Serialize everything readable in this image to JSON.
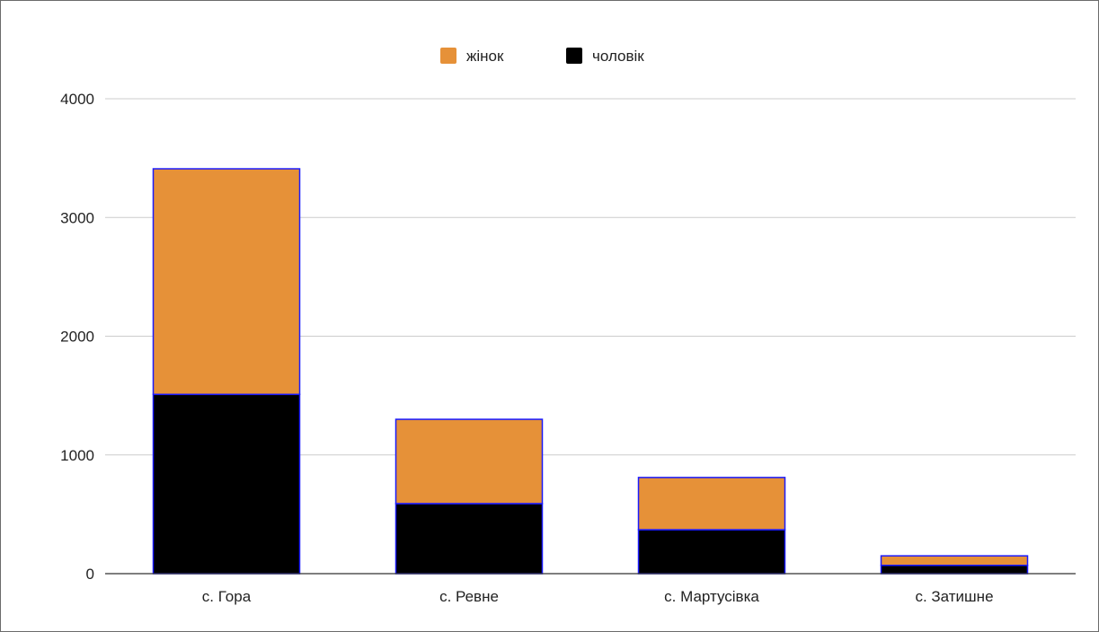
{
  "chart_data": {
    "type": "bar",
    "stacked": true,
    "title": "",
    "xlabel": "",
    "ylabel": "",
    "categories": [
      "с. Гора",
      "с. Ревне",
      "с. Мартусівка",
      "с. Затишне"
    ],
    "series": [
      {
        "name": "чоловік",
        "color": "#000000",
        "values": [
          1510,
          590,
          370,
          70
        ]
      },
      {
        "name": "жінок",
        "color": "#e69138",
        "values": [
          1900,
          710,
          440,
          80
        ]
      }
    ],
    "legend_order": [
      "жінок",
      "чоловік"
    ],
    "bar_outline_color": "#1a1aff",
    "yticks": [
      "0",
      "1000",
      "2000",
      "3000",
      "4000"
    ],
    "ylim": [
      0,
      4000
    ],
    "grid": true,
    "legend_position": "top-center"
  }
}
